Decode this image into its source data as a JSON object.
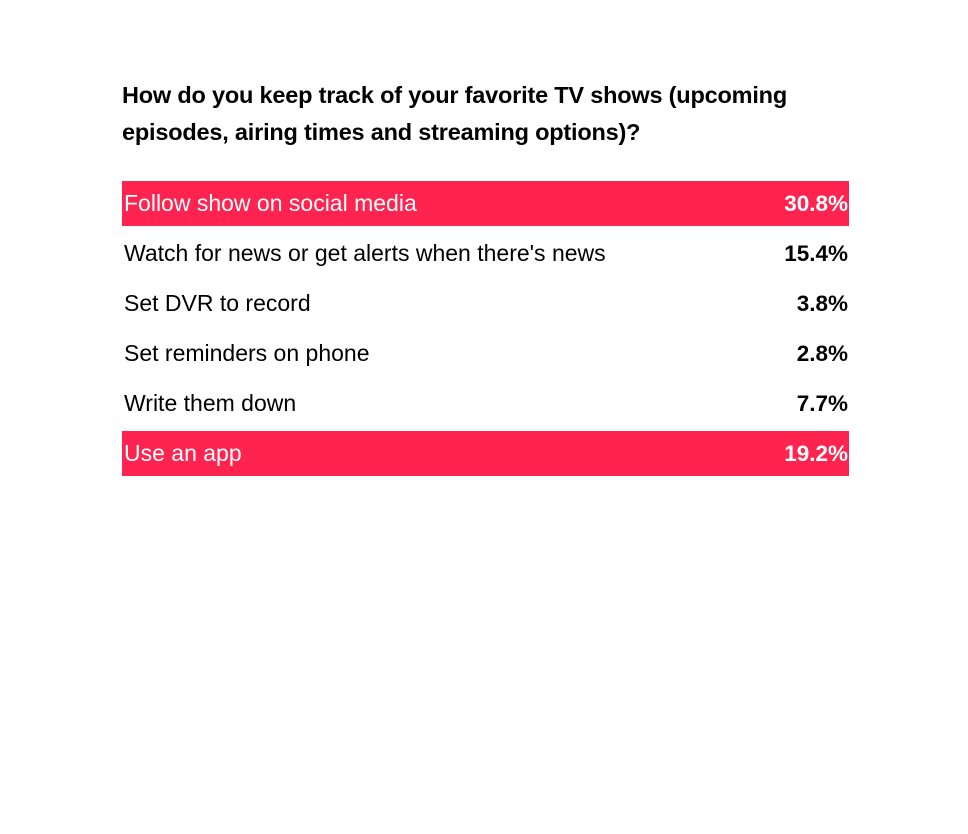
{
  "poll": {
    "question": "How do you keep track of your favorite TV shows (upcoming episodes, airing times and streaming options)?"
  },
  "colors": {
    "highlight": "#ff234f",
    "text": "#000000",
    "highlight_text": "#ffffff"
  },
  "chart_data": {
    "type": "table",
    "title": "How do you keep track of your favorite TV shows (upcoming episodes, airing times and streaming options)?",
    "rows": [
      {
        "label": "Follow show on social media",
        "value_label": "30.8%",
        "value": 30.8,
        "highlighted": true
      },
      {
        "label": "Watch for news or get alerts when there's news",
        "value_label": "15.4%",
        "value": 15.4,
        "highlighted": false
      },
      {
        "label": "Set DVR to record",
        "value_label": "3.8%",
        "value": 3.8,
        "highlighted": false
      },
      {
        "label": "Set reminders on phone",
        "value_label": "2.8%",
        "value": 2.8,
        "highlighted": false
      },
      {
        "label": "Write them down",
        "value_label": "7.7%",
        "value": 7.7,
        "highlighted": false
      },
      {
        "label": "Use an app",
        "value_label": "19.2%",
        "value": 19.2,
        "highlighted": true
      }
    ]
  }
}
